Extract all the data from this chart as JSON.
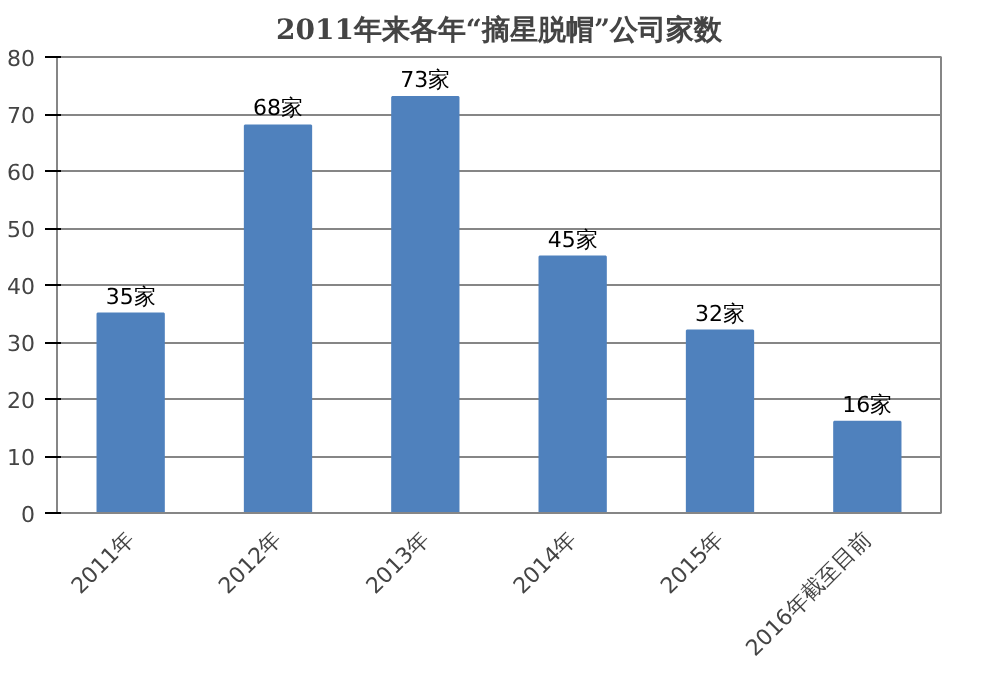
{
  "chart_data": {
    "type": "bar",
    "title": "2011年来各年“摘星脱帽”公司家数",
    "categories": [
      "2011年",
      "2012年",
      "2013年",
      "2014年",
      "2015年",
      "2016年截至目前"
    ],
    "values": [
      35,
      68,
      73,
      45,
      32,
      16
    ],
    "value_labels": [
      "35家",
      "68家",
      "73家",
      "45家",
      "32家",
      "16家"
    ],
    "color": "#4f81bd",
    "ylim": [
      0,
      80
    ],
    "yticks": [
      0,
      10,
      20,
      30,
      40,
      50,
      60,
      70,
      80
    ],
    "grid": "y"
  }
}
